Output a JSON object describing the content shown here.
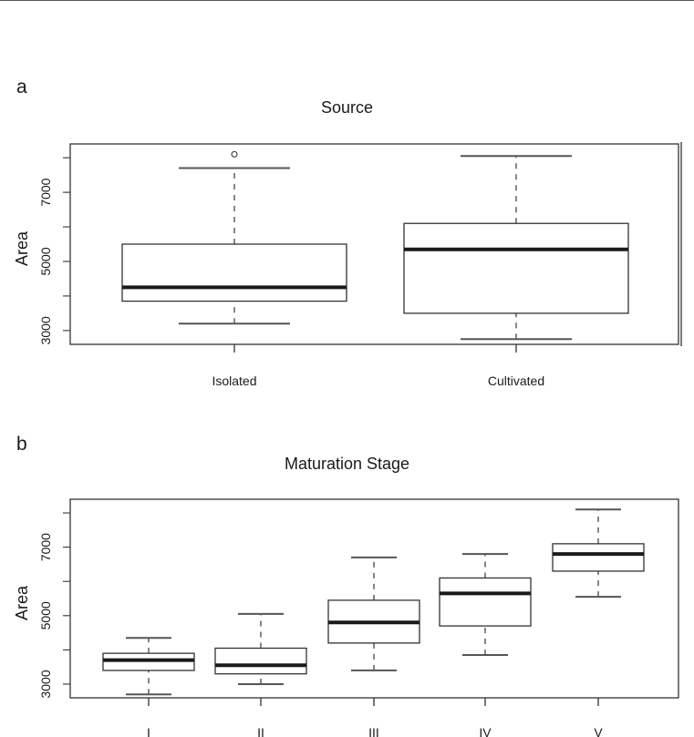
{
  "panels": [
    {
      "letter": "a"
    },
    {
      "letter": "b"
    }
  ],
  "chart_data": [
    {
      "type": "box",
      "title": "Source",
      "xlabel": "",
      "ylabel": "Area",
      "ylim": [
        2600,
        8400
      ],
      "yticks": [
        3000,
        5000,
        7000
      ],
      "categories": [
        "Isolated",
        "Cultivated"
      ],
      "boxes": [
        {
          "min": 3200,
          "q1": 3850,
          "median": 4250,
          "q3": 5500,
          "max": 7700,
          "outliers": [
            8100
          ]
        },
        {
          "min": 2750,
          "q1": 3500,
          "median": 5350,
          "q3": 6100,
          "max": 8050,
          "outliers": []
        }
      ]
    },
    {
      "type": "box",
      "title": "Maturation Stage",
      "xlabel": "",
      "ylabel": "Area",
      "ylim": [
        2600,
        8400
      ],
      "yticks": [
        3000,
        5000,
        7000
      ],
      "categories": [
        "I",
        "II",
        "III",
        "IV",
        "V"
      ],
      "boxes": [
        {
          "min": 2700,
          "q1": 3400,
          "median": 3700,
          "q3": 3900,
          "max": 4350,
          "outliers": []
        },
        {
          "min": 3000,
          "q1": 3300,
          "median": 3550,
          "q3": 4050,
          "max": 5050,
          "outliers": []
        },
        {
          "min": 3400,
          "q1": 4200,
          "median": 4800,
          "q3": 5450,
          "max": 6700,
          "outliers": []
        },
        {
          "min": 3850,
          "q1": 4700,
          "median": 5650,
          "q3": 6100,
          "max": 6800,
          "outliers": []
        },
        {
          "min": 5550,
          "q1": 6300,
          "median": 6800,
          "q3": 7100,
          "max": 8100,
          "outliers": []
        }
      ]
    }
  ]
}
